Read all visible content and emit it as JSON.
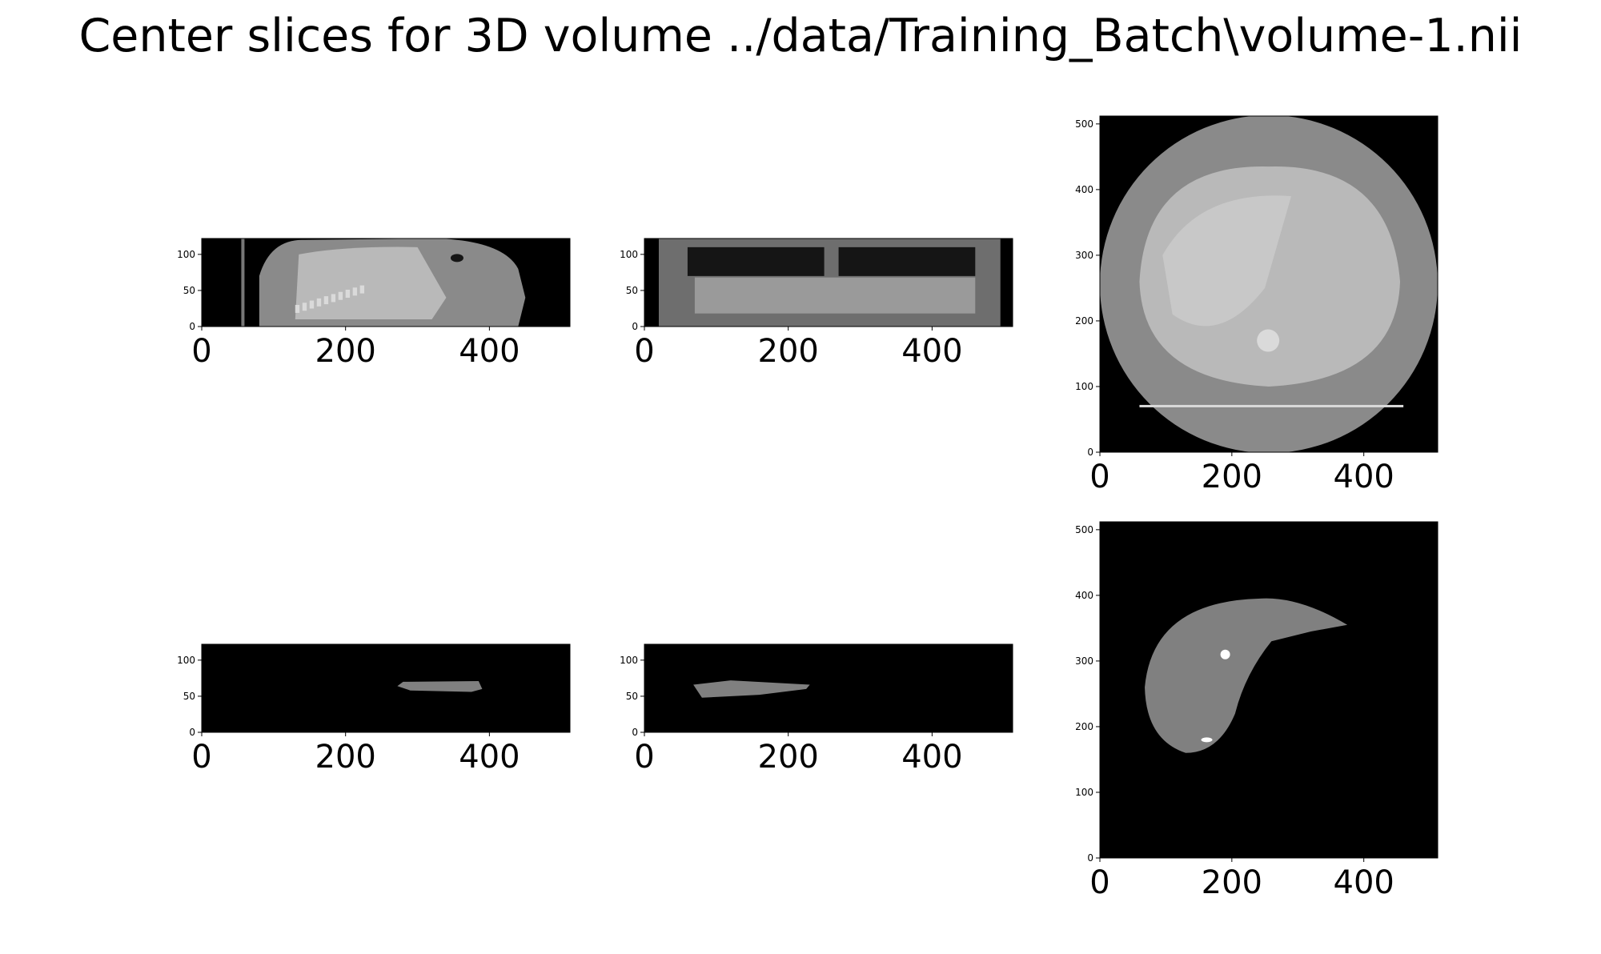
{
  "figure": {
    "title": "Center slices for 3D volume ../data/Training_Batch\\volume-1.nii"
  },
  "panels": [
    {
      "id": "image-sagittal",
      "kind": "ct-sagittal",
      "xticks": [
        "0",
        "200",
        "400"
      ],
      "yticks": [
        "0",
        "50",
        "100"
      ]
    },
    {
      "id": "image-coronal",
      "kind": "ct-coronal",
      "xticks": [
        "0",
        "200",
        "400"
      ],
      "yticks": [
        "0",
        "50",
        "100"
      ]
    },
    {
      "id": "image-axial",
      "kind": "ct-axial",
      "xticks": [
        "0",
        "200",
        "400"
      ],
      "yticks": [
        "0",
        "100",
        "200",
        "300",
        "400",
        "500"
      ]
    },
    {
      "id": "mask-sagittal",
      "kind": "mask-sagittal",
      "xticks": [
        "0",
        "200",
        "400"
      ],
      "yticks": [
        "0",
        "50",
        "100"
      ]
    },
    {
      "id": "mask-coronal",
      "kind": "mask-coronal",
      "xticks": [
        "0",
        "200",
        "400"
      ],
      "yticks": [
        "0",
        "50",
        "100"
      ]
    },
    {
      "id": "mask-axial",
      "kind": "mask-axial",
      "xticks": [
        "0",
        "200",
        "400"
      ],
      "yticks": [
        "0",
        "100",
        "200",
        "300",
        "400",
        "500"
      ]
    }
  ],
  "colors": {
    "background": "#000000",
    "ct_body": "#8a8a8a",
    "ct_soft": "#b9b9b9",
    "ct_bright": "#dadada",
    "ct_air": "#151515",
    "mask_liver": "#808080",
    "mask_tumor": "#ffffff"
  }
}
